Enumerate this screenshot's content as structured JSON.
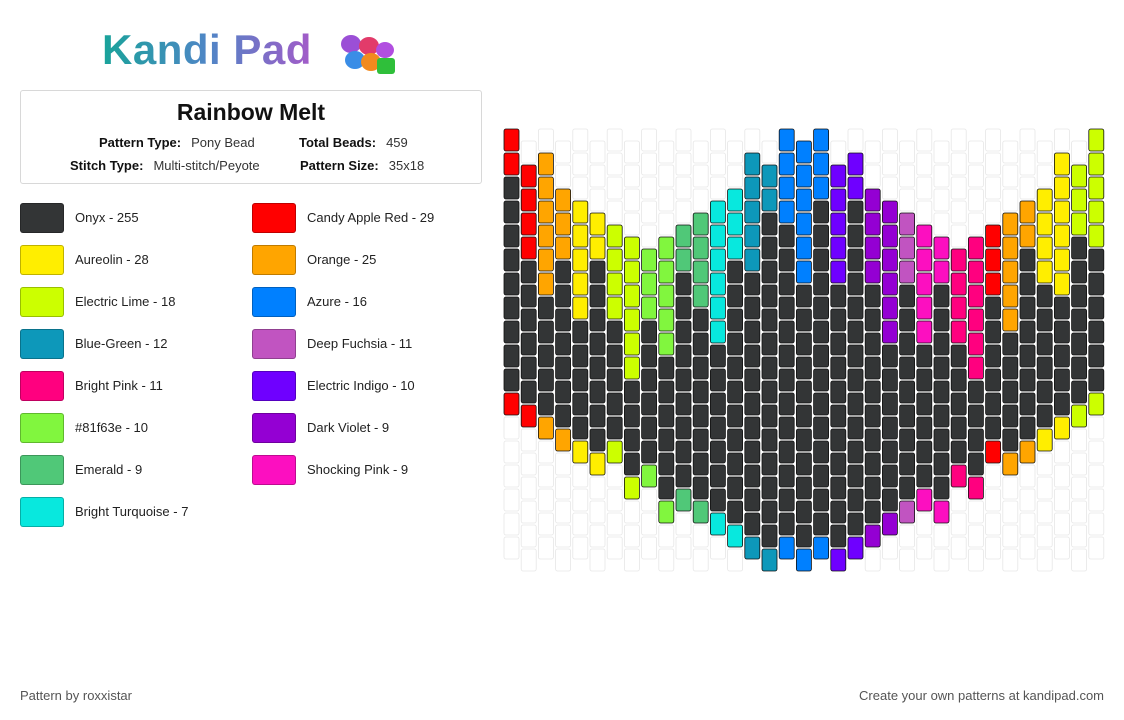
{
  "brand": {
    "name": "Kandi Pad"
  },
  "pattern": {
    "title": "Rainbow Melt",
    "type_label": "Pattern Type:",
    "type_value": "Pony Bead",
    "beads_label": "Total Beads:",
    "beads_value": "459",
    "stitch_label": "Stitch Type:",
    "stitch_value": "Multi-stitch/Peyote",
    "size_label": "Pattern Size:",
    "size_value": "35x18",
    "columns": 35,
    "rows": 18
  },
  "colors": [
    {
      "label": "Onyx - 255",
      "hex": "#333536"
    },
    {
      "label": "Candy Apple Red - 29",
      "hex": "#ff0000"
    },
    {
      "label": "Aureolin - 28",
      "hex": "#ffee00"
    },
    {
      "label": "Orange - 25",
      "hex": "#ffa500"
    },
    {
      "label": "Electric Lime - 18",
      "hex": "#ccff00"
    },
    {
      "label": "Azure - 16",
      "hex": "#0080ff"
    },
    {
      "label": "Blue-Green - 12",
      "hex": "#0d98ba"
    },
    {
      "label": "Deep Fuchsia - 11",
      "hex": "#c154c1"
    },
    {
      "label": "Bright Pink - 11",
      "hex": "#ff007f"
    },
    {
      "label": "Electric Indigo - 10",
      "hex": "#6f00ff"
    },
    {
      "label": "#81f63e - 10",
      "hex": "#81f63e"
    },
    {
      "label": "Dark Violet - 9",
      "hex": "#9400d3"
    },
    {
      "label": "Emerald - 9",
      "hex": "#50c878"
    },
    {
      "label": "Shocking Pink - 9",
      "hex": "#fc0fc0"
    },
    {
      "label": "Bright Turquoise - 7",
      "hex": "#08e8de"
    }
  ],
  "footer": {
    "credit": "Pattern by roxxistar",
    "cta": "Create your own patterns at kandipad.com"
  }
}
